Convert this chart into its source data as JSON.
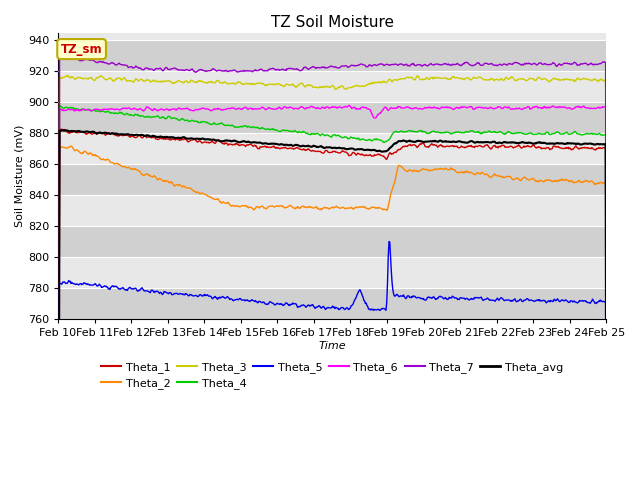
{
  "title": "TZ Soil Moisture",
  "xlabel": "Time",
  "ylabel": "Soil Moisture (mV)",
  "ylim": [
    760,
    945
  ],
  "background_color": "#ffffff",
  "plot_bg_color": "#e8e8e8",
  "band_color": "#d0d0d0",
  "grid_color": "#ffffff",
  "label_box_text": "TZ_sm",
  "label_box_bg": "#ffffcc",
  "label_box_border": "#bbaa00",
  "label_box_text_color": "#cc0000",
  "legend_entries": [
    "Theta_1",
    "Theta_2",
    "Theta_3",
    "Theta_4",
    "Theta_5",
    "Theta_6",
    "Theta_7",
    "Theta_avg"
  ],
  "legend_colors": [
    "#cc0000",
    "#ff8800",
    "#cccc00",
    "#00cc00",
    "#0000ee",
    "#ff00ff",
    "#9900cc",
    "#000000"
  ],
  "x_tick_labels": [
    "Feb 10",
    "Feb 11",
    "Feb 12",
    "Feb 13",
    "Feb 14",
    "Feb 15",
    "Feb 16",
    "Feb 17",
    "Feb 18",
    "Feb 19",
    "Feb 20",
    "Feb 21",
    "Feb 22",
    "Feb 23",
    "Feb 24",
    "Feb 25"
  ],
  "n_points": 720,
  "num_days": 15
}
